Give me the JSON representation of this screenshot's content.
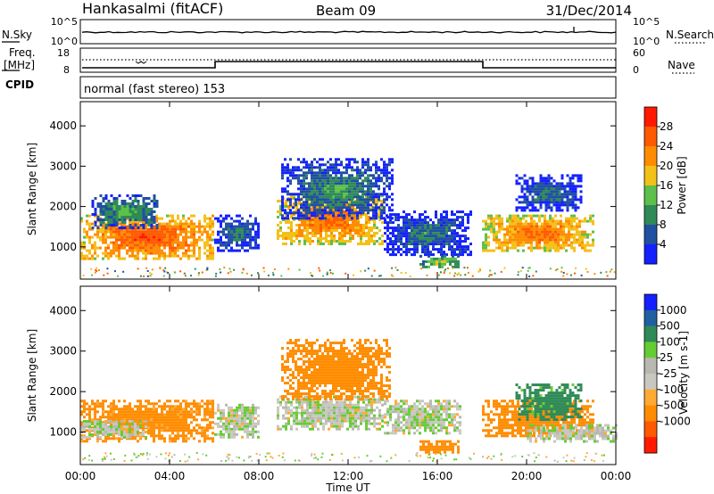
{
  "header": {
    "station": "Hankasalmi (fitACF)",
    "beam": "Beam 09",
    "date": "31/Dec/2014"
  },
  "noise_panel": {
    "left_label": "N.Sky",
    "right_label": "N.Search",
    "left_ticks": [
      "10^5",
      "10^0"
    ],
    "right_ticks": [
      "10^5",
      "10^0"
    ]
  },
  "freq_panel": {
    "left_label_1": "Freq.",
    "left_label_2": "[MHz]",
    "left_ticks": [
      "18",
      "8"
    ],
    "right_label": "Nave",
    "right_ticks": [
      "60",
      "0"
    ]
  },
  "cpid": {
    "label": "CPID",
    "program": "normal (fast stereo) 153"
  },
  "colors": {
    "power": [
      "#1420ff",
      "#2050a0",
      "#2f8a57",
      "#5cc04a",
      "#f3c018",
      "#ff8c00",
      "#ff5a00",
      "#ff1a00"
    ],
    "velocity": [
      "#ff1a00",
      "#ff5a00",
      "#ff8c00",
      "#ffaa33",
      "#c8c8c0",
      "#b8b8b0",
      "#66cc33",
      "#2f8a57",
      "#2060a0",
      "#1420ff"
    ]
  },
  "chart_data": [
    {
      "type": "heatmap",
      "ylabel": "Slant Range [km]",
      "yticks": [
        "1000",
        "2000",
        "3000",
        "4000"
      ],
      "ylim": [
        200,
        4600
      ],
      "xlim": [
        "00:00",
        "24:00"
      ],
      "colorbar": {
        "label": "Power [dB]",
        "ticks": [
          "4",
          "8",
          "12",
          "16",
          "20",
          "24",
          "28"
        ],
        "range": [
          0,
          30
        ]
      },
      "regions": [
        {
          "t0": 0.0,
          "t1": 6.0,
          "r0": 700,
          "r1": 1800,
          "level": 28
        },
        {
          "t0": 0.5,
          "t1": 3.5,
          "r0": 1500,
          "r1": 2300,
          "level": 14
        },
        {
          "t0": 6.0,
          "t1": 8.0,
          "r0": 900,
          "r1": 1800,
          "level": 10
        },
        {
          "t0": 8.8,
          "t1": 13.6,
          "r0": 1100,
          "r1": 2300,
          "level": 26
        },
        {
          "t0": 9.0,
          "t1": 14.0,
          "r0": 1700,
          "r1": 3200,
          "level": 12
        },
        {
          "t0": 13.6,
          "t1": 17.5,
          "r0": 800,
          "r1": 1900,
          "level": 10
        },
        {
          "t0": 15.2,
          "t1": 17.0,
          "r0": 500,
          "r1": 800,
          "level": 18
        },
        {
          "t0": 18.0,
          "t1": 23.0,
          "r0": 900,
          "r1": 1800,
          "level": 26
        },
        {
          "t0": 19.5,
          "t1": 22.5,
          "r0": 1900,
          "r1": 2800,
          "level": 10
        }
      ]
    },
    {
      "type": "heatmap",
      "ylabel": "Slant Range [km]",
      "xlabel": "Time UT",
      "yticks": [
        "1000",
        "2000",
        "3000",
        "4000"
      ],
      "xticks": [
        "00:00",
        "04:00",
        "08:00",
        "12:00",
        "16:00",
        "20:00",
        "00:00"
      ],
      "ylim": [
        200,
        4600
      ],
      "xlim": [
        "00:00",
        "24:00"
      ],
      "colorbar": {
        "label": "Velocity [m s-1]",
        "ticks": [
          "1000",
          "500",
          "100",
          "25",
          "-25",
          "-100",
          "-500",
          "-1000"
        ]
      },
      "regions": [
        {
          "t0": 0.0,
          "t1": 6.0,
          "r0": 800,
          "r1": 1800,
          "velocity": -150
        },
        {
          "t0": 0.0,
          "t1": 3.0,
          "r0": 900,
          "r1": 1300,
          "velocity": 0
        },
        {
          "t0": 6.0,
          "t1": 8.0,
          "r0": 900,
          "r1": 1700,
          "velocity": 0
        },
        {
          "t0": 8.8,
          "t1": 13.6,
          "r0": 1100,
          "r1": 1900,
          "velocity": 0
        },
        {
          "t0": 9.0,
          "t1": 13.8,
          "r0": 1800,
          "r1": 3300,
          "velocity": -400
        },
        {
          "t0": 13.6,
          "t1": 17.0,
          "r0": 1000,
          "r1": 1800,
          "velocity": 0
        },
        {
          "t0": 15.2,
          "t1": 17.0,
          "r0": 500,
          "r1": 800,
          "velocity": -200
        },
        {
          "t0": 18.0,
          "t1": 23.0,
          "r0": 900,
          "r1": 1800,
          "velocity": -200
        },
        {
          "t0": 19.5,
          "t1": 22.5,
          "r0": 1300,
          "r1": 2200,
          "velocity": 150
        },
        {
          "t0": 20.0,
          "t1": 24.0,
          "r0": 800,
          "r1": 1200,
          "velocity": 0
        }
      ]
    }
  ],
  "xaxis": {
    "ticks": [
      "00:00",
      "04:00",
      "08:00",
      "12:00",
      "16:00",
      "20:00",
      "00:00"
    ],
    "label": "Time UT"
  }
}
